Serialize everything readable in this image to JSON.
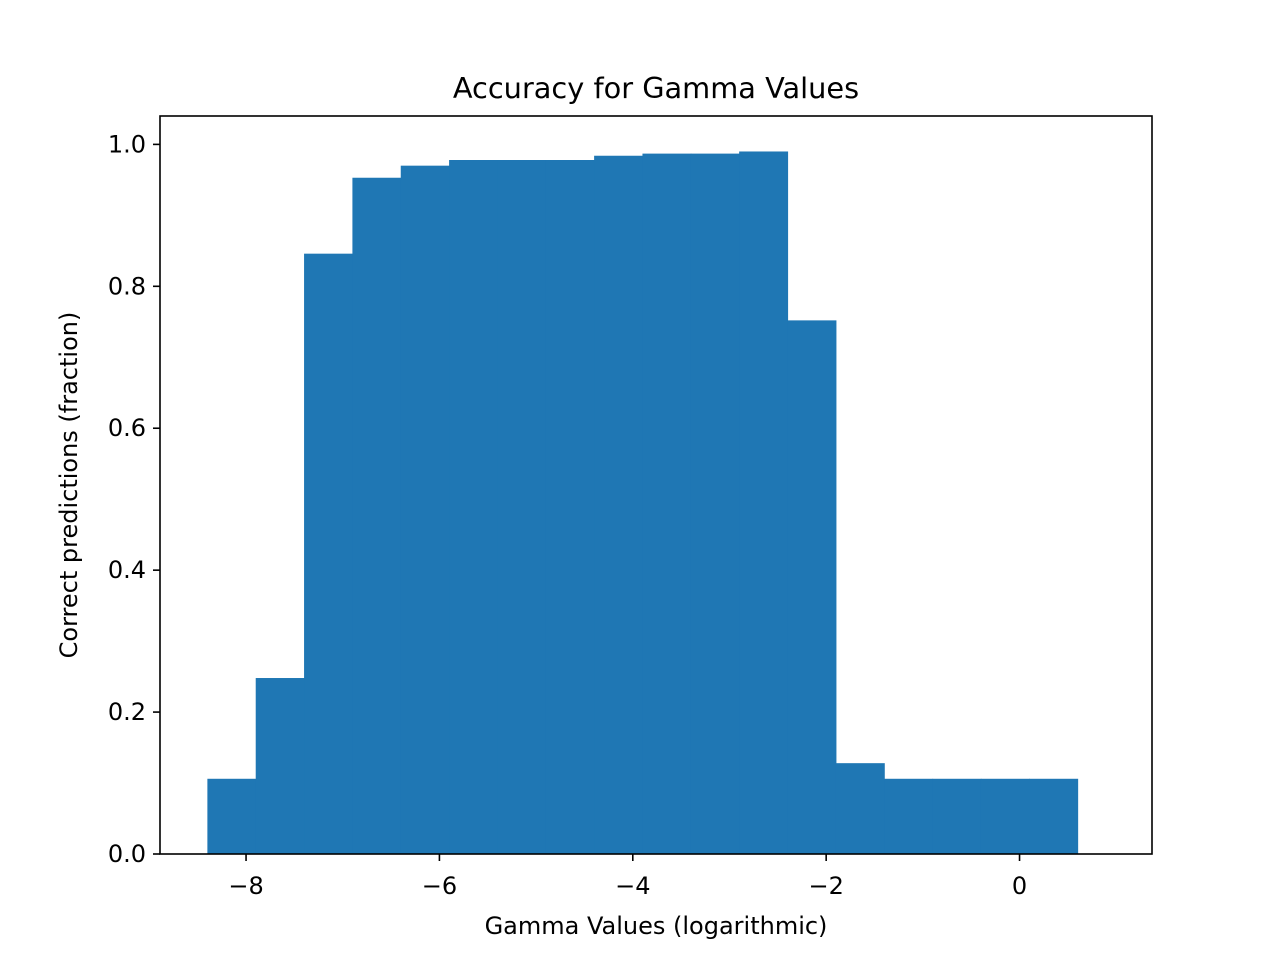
{
  "chart_data": {
    "type": "bar",
    "title": "Accuracy for Gamma Values",
    "xlabel": "Gamma Values (logarithmic)",
    "ylabel": "Correct predictions (fraction)",
    "bar_color": "#1f77b4",
    "bar_width": 0.5,
    "x": [
      -8.15,
      -7.65,
      -7.15,
      -6.65,
      -6.15,
      -5.65,
      -5.15,
      -4.65,
      -4.15,
      -3.65,
      -3.15,
      -2.65,
      -2.15,
      -1.65,
      -1.15,
      -0.65,
      -0.15,
      0.35
    ],
    "values": [
      0.106,
      0.248,
      0.846,
      0.953,
      0.97,
      0.978,
      0.978,
      0.978,
      0.984,
      0.987,
      0.987,
      0.99,
      0.752,
      0.128,
      0.106,
      0.106,
      0.106,
      0.106
    ],
    "xlim": [
      -8.89,
      1.37
    ],
    "ylim": [
      0,
      1.04
    ],
    "xticks": [
      -8,
      -6,
      -4,
      -2,
      0
    ],
    "xtick_labels": [
      "−8",
      "−6",
      "−4",
      "−2",
      "0"
    ],
    "yticks": [
      0.0,
      0.2,
      0.4,
      0.6,
      0.8,
      1.0
    ],
    "ytick_labels": [
      "0.0",
      "0.2",
      "0.4",
      "0.6",
      "0.8",
      "1.0"
    ],
    "grid": false,
    "legend": false
  }
}
